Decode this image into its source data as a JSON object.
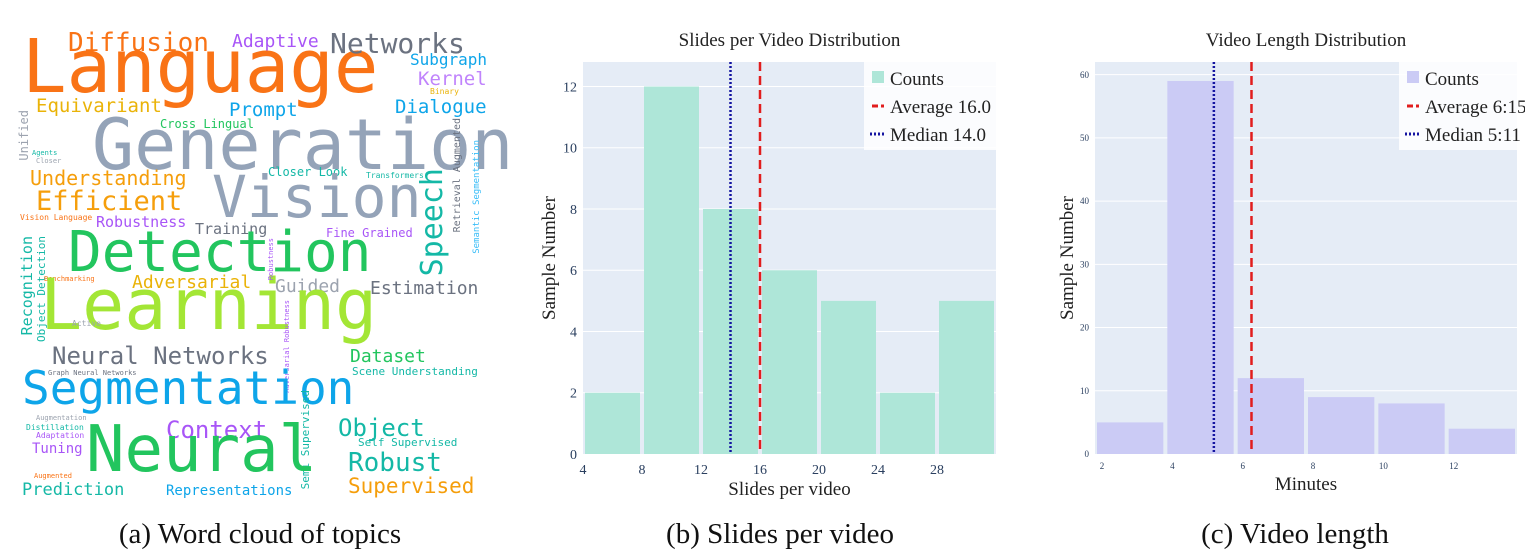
{
  "captions": {
    "a": "(a) Word cloud of topics",
    "b": "(b) Slides per video",
    "c": "(c) Video length"
  },
  "wordcloud": [
    {
      "t": "Language",
      "c": "#f97316"
    },
    {
      "t": "Diffusion",
      "c": "#f97316"
    },
    {
      "t": "Adaptive",
      "c": "#a855f7"
    },
    {
      "t": "Networks",
      "c": "#6b7280"
    },
    {
      "t": "Subgraph",
      "c": "#0ea5e9"
    },
    {
      "t": "Kernel",
      "c": "#c084fc"
    },
    {
      "t": "Binary",
      "c": "#eab308"
    },
    {
      "t": "Equivariant",
      "c": "#eab308"
    },
    {
      "t": "Prompt",
      "c": "#0ea5e9"
    },
    {
      "t": "Dialogue",
      "c": "#0ea5e9"
    },
    {
      "t": "Cross Lingual",
      "c": "#22c55e"
    },
    {
      "t": "Generation",
      "c": "#94a3b8"
    },
    {
      "t": "Unified",
      "c": "#9ca3af"
    },
    {
      "t": "Agents",
      "c": "#14b8a6"
    },
    {
      "t": "Closer",
      "c": "#9ca3af"
    },
    {
      "t": "Understanding",
      "c": "#f59e0b"
    },
    {
      "t": "Closer Look",
      "c": "#14b8a6"
    },
    {
      "t": "Transformers",
      "c": "#14b8a6"
    },
    {
      "t": "Retrieval Augmented",
      "c": "#6b7280"
    },
    {
      "t": "Semantic Segmentation",
      "c": "#38bdf8"
    },
    {
      "t": "Efficient",
      "c": "#f59e0b"
    },
    {
      "t": "Vision",
      "c": "#94a3b8"
    },
    {
      "t": "Vision Language",
      "c": "#f97316"
    },
    {
      "t": "Robustness",
      "c": "#a855f7"
    },
    {
      "t": "Training",
      "c": "#6b7280"
    },
    {
      "t": "Fine Grained",
      "c": "#a855f7"
    },
    {
      "t": "Detection",
      "c": "#22c55e"
    },
    {
      "t": "Speech",
      "c": "#14b8a6"
    },
    {
      "t": "Recognition",
      "c": "#14b8a6"
    },
    {
      "t": "Object Detection",
      "c": "#14b8a6"
    },
    {
      "t": "Benchmarking",
      "c": "#f97316"
    },
    {
      "t": "Adversarial",
      "c": "#eab308"
    },
    {
      "t": "Guided",
      "c": "#9ca3af"
    },
    {
      "t": "Estimation",
      "c": "#6b7280"
    },
    {
      "t": "Learning",
      "c": "#a3e635"
    },
    {
      "t": "Active",
      "c": "#9ca3af"
    },
    {
      "t": "Robustness",
      "c": "#a855f7"
    },
    {
      "t": "Adversarial Robustness",
      "c": "#a855f7"
    },
    {
      "t": "Neural Networks",
      "c": "#6b7280"
    },
    {
      "t": "Dataset",
      "c": "#22c55e"
    },
    {
      "t": "Graph Neural Networks",
      "c": "#6b7280"
    },
    {
      "t": "Scene Understanding",
      "c": "#14b8a6"
    },
    {
      "t": "Segmentation",
      "c": "#0ea5e9"
    },
    {
      "t": "Augmentation",
      "c": "#9ca3af"
    },
    {
      "t": "Distillation",
      "c": "#14b8a6"
    },
    {
      "t": "Adaptation",
      "c": "#a855f7"
    },
    {
      "t": "Context",
      "c": "#a855f7"
    },
    {
      "t": "Semi Supervised",
      "c": "#14b8a6"
    },
    {
      "t": "Object",
      "c": "#14b8a6"
    },
    {
      "t": "Self Supervised",
      "c": "#14b8a6"
    },
    {
      "t": "Tuning",
      "c": "#a855f7"
    },
    {
      "t": "Neural",
      "c": "#22c55e"
    },
    {
      "t": "Robust",
      "c": "#14b8a6"
    },
    {
      "t": "Augmented",
      "c": "#f97316"
    },
    {
      "t": "Prediction",
      "c": "#14b8a6"
    },
    {
      "t": "Representations",
      "c": "#0ea5e9"
    },
    {
      "t": "Supervised",
      "c": "#f59e0b"
    }
  ],
  "chart_data": [
    {
      "type": "bar",
      "title": "Slides per Video Distribution",
      "xlabel": "Slides per video",
      "ylabel": "Sample Number",
      "xlim": [
        4,
        32
      ],
      "ylim": [
        0,
        12.8
      ],
      "xticks": [
        4,
        8,
        12,
        16,
        20,
        24,
        28
      ],
      "yticks": [
        0,
        2,
        4,
        6,
        8,
        10,
        12
      ],
      "bins": [
        [
          4,
          8
        ],
        [
          8,
          12
        ],
        [
          12,
          16
        ],
        [
          16,
          20
        ],
        [
          20,
          24
        ],
        [
          24,
          28
        ],
        [
          28,
          32
        ]
      ],
      "values": [
        2,
        12,
        8,
        6,
        5,
        2,
        5
      ],
      "bar_color": "#aee6d8",
      "series_name": "Counts",
      "average": {
        "label": "Average 16.0",
        "value": 16.0,
        "color": "#e11d1d"
      },
      "median": {
        "label": "Median 14.0",
        "value": 14.0,
        "color": "#1414a0"
      },
      "legend": "top-right",
      "grid": true
    },
    {
      "type": "bar",
      "title": "Video Length Distribution",
      "xlabel": "Minutes",
      "ylabel": "Sample Number",
      "xlim": [
        1.8,
        13.8
      ],
      "ylim": [
        0,
        62
      ],
      "xticks": [
        2,
        4,
        6,
        8,
        10,
        12
      ],
      "yticks": [
        0,
        10,
        20,
        30,
        40,
        50,
        60
      ],
      "bins": [
        [
          1.8,
          3.8
        ],
        [
          3.8,
          5.8
        ],
        [
          5.8,
          7.8
        ],
        [
          7.8,
          9.8
        ],
        [
          9.8,
          11.8
        ],
        [
          11.8,
          13.8
        ]
      ],
      "values": [
        5,
        59,
        12,
        9,
        8,
        4
      ],
      "bar_color": "#cbcbf5",
      "series_name": "Counts",
      "average": {
        "label": "Average 6:15",
        "value": 6.25,
        "color": "#e11d1d"
      },
      "median": {
        "label": "Median 5:11",
        "value": 5.18,
        "color": "#1414a0"
      },
      "legend": "top-right",
      "grid": true
    }
  ]
}
